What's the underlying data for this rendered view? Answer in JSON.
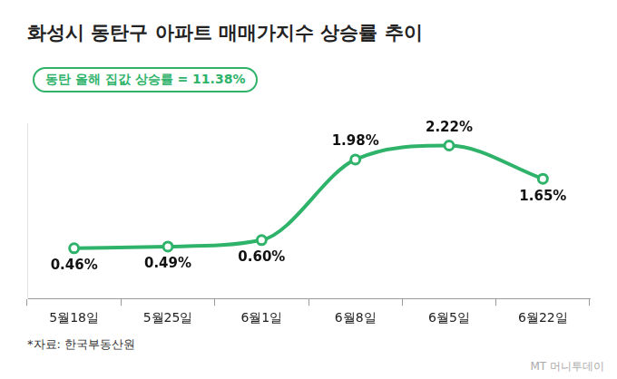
{
  "chart_data": {
    "type": "line",
    "title": "화성시 동탄구 아파트 매매가지수 상승률 추이",
    "subtitle": "동탄 올해 집값 상승률 = 11.38%",
    "categories": [
      "5월18일",
      "5월25일",
      "6월1일",
      "6월8일",
      "6월5일",
      "6월22일"
    ],
    "values": [
      0.46,
      0.49,
      0.6,
      1.98,
      2.22,
      1.65
    ],
    "value_labels": [
      "0.46%",
      "0.49%",
      "0.60%",
      "1.98%",
      "2.22%",
      "1.65%"
    ],
    "color": "#2fb36a",
    "marker": "circle",
    "ylim": [
      -0.4,
      2.6
    ],
    "yticks": [],
    "grid": false,
    "data_labels": true,
    "tick_labels": "x",
    "source": "*자료: 한국부동산원",
    "credit": "MT 머니투데이"
  }
}
